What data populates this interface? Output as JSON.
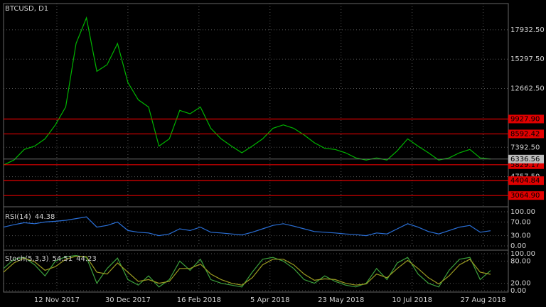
{
  "chart_data": [
    {
      "type": "line",
      "title": "BTCUSD, D1",
      "color": "#00b400",
      "grid": true,
      "x": [
        "7 Oct 2017",
        "14 Oct 2017",
        "21 Oct 2017",
        "28 Oct 2017",
        "4 Nov 2017",
        "11 Nov 2017",
        "18 Nov 2017",
        "25 Nov 2017",
        "2 Dec 2017",
        "9 Dec 2017",
        "16 Dec 2017",
        "23 Dec 2017",
        "30 Dec 2017",
        "6 Jan 2018",
        "13 Jan 2018",
        "20 Jan 2018",
        "27 Jan 2018",
        "3 Feb 2018",
        "10 Feb 2018",
        "17 Feb 2018",
        "24 Feb 2018",
        "3 Mar 2018",
        "10 Mar 2018",
        "17 Mar 2018",
        "24 Mar 2018",
        "31 Mar 2018",
        "7 Apr 2018",
        "14 Apr 2018",
        "21 Apr 2018",
        "28 Apr 2018",
        "5 May 2018",
        "12 May 2018",
        "19 May 2018",
        "26 May 2018",
        "2 Jun 2018",
        "9 Jun 2018",
        "16 Jun 2018",
        "23 Jun 2018",
        "30 Jun 2018",
        "7 Jul 2018",
        "14 Jul 2018",
        "21 Jul 2018",
        "28 Jul 2018",
        "4 Aug 2018",
        "11 Aug 2018",
        "18 Aug 2018",
        "25 Aug 2018",
        "1 Sep 2018"
      ],
      "values": [
        5800,
        6250,
        7200,
        7500,
        8150,
        9400,
        11000,
        16700,
        19000,
        14200,
        14800,
        16700,
        13200,
        11650,
        11000,
        7500,
        8150,
        10700,
        10400,
        11000,
        9100,
        8150,
        7500,
        6900,
        7500,
        8150,
        9100,
        9400,
        9100,
        8500,
        7800,
        7300,
        7200,
        6900,
        6440,
        6250,
        6440,
        6250,
        7080,
        8150,
        7500,
        6900,
        6250,
        6440,
        6900,
        7200,
        6440,
        6336.56
      ],
      "xlim": [
        "7 Oct 2017",
        "13 Sep 2018"
      ],
      "xticks": [
        "12 Nov 2017",
        "30 Dec 2017",
        "16 Feb 2018",
        "5 Apr 2018",
        "23 May 2018",
        "10 Jul 2018",
        "27 Aug 2018"
      ],
      "ylim": [
        2120,
        20280
      ],
      "yticks": [
        {
          "value": 17932.5,
          "label": "17932.50"
        },
        {
          "value": 15297.5,
          "label": "15297.50"
        },
        {
          "value": 12662.5,
          "label": "12662.50"
        },
        {
          "value": 7392.5,
          "label": "7392.50"
        },
        {
          "value": 4757.5,
          "label": "4757.50"
        }
      ],
      "levels": [
        {
          "value": 9927.9,
          "label": "9927.90"
        },
        {
          "value": 8592.42,
          "label": "8592.42"
        },
        {
          "value": 5829.17,
          "label": "5829.17"
        },
        {
          "value": 4404.84,
          "label": "4404.84"
        },
        {
          "value": 3064.9,
          "label": "3064.90"
        }
      ],
      "level_color": "#e00000",
      "price_label": {
        "value": 6336.56,
        "label": "6336.56"
      }
    },
    {
      "type": "line",
      "title": "RSI(14)",
      "legend_values": [
        44.38
      ],
      "grid": true,
      "series": [
        {
          "color": "#2a6fd6",
          "values": [
            55,
            62,
            68,
            65,
            70,
            72,
            75,
            80,
            85,
            55,
            60,
            70,
            45,
            40,
            38,
            30,
            35,
            50,
            45,
            55,
            40,
            38,
            35,
            32,
            40,
            50,
            60,
            65,
            58,
            50,
            42,
            40,
            38,
            35,
            33,
            30,
            38,
            35,
            50,
            65,
            55,
            42,
            35,
            45,
            55,
            60,
            40,
            44.38
          ]
        }
      ],
      "ylim": [
        0,
        100
      ],
      "yticks": [
        {
          "value": 100,
          "label": "100.00"
        },
        {
          "value": 70,
          "label": "70.00"
        },
        {
          "value": 30,
          "label": "30.00"
        },
        {
          "value": 0,
          "label": "0.00"
        }
      ]
    },
    {
      "type": "line",
      "title": "Stoch(5,3,3)",
      "legend_values": [
        54.51,
        44.23
      ],
      "grid": true,
      "series": [
        {
          "color": "#3ca03c",
          "values": [
            60,
            85,
            90,
            70,
            40,
            80,
            92,
            95,
            90,
            20,
            60,
            88,
            30,
            15,
            40,
            10,
            30,
            80,
            55,
            85,
            30,
            20,
            15,
            10,
            50,
            85,
            90,
            80,
            60,
            30,
            20,
            40,
            25,
            15,
            10,
            20,
            60,
            30,
            75,
            90,
            45,
            20,
            10,
            55,
            85,
            90,
            30,
            54.51
          ]
        },
        {
          "color": "#9a9a20",
          "values": [
            50,
            75,
            88,
            78,
            55,
            65,
            85,
            93,
            92,
            50,
            45,
            75,
            50,
            25,
            30,
            20,
            25,
            60,
            60,
            72,
            45,
            30,
            20,
            15,
            35,
            70,
            85,
            85,
            70,
            45,
            28,
            32,
            30,
            20,
            15,
            18,
            45,
            35,
            60,
            82,
            60,
            35,
            18,
            40,
            70,
            85,
            50,
            44.23
          ]
        }
      ],
      "ylim": [
        0,
        100
      ],
      "yticks": [
        {
          "value": 100,
          "label": "100.00"
        },
        {
          "value": 80,
          "label": "80.00"
        },
        {
          "value": 20,
          "label": "20.00"
        },
        {
          "value": 0,
          "label": "0.00"
        }
      ]
    }
  ]
}
